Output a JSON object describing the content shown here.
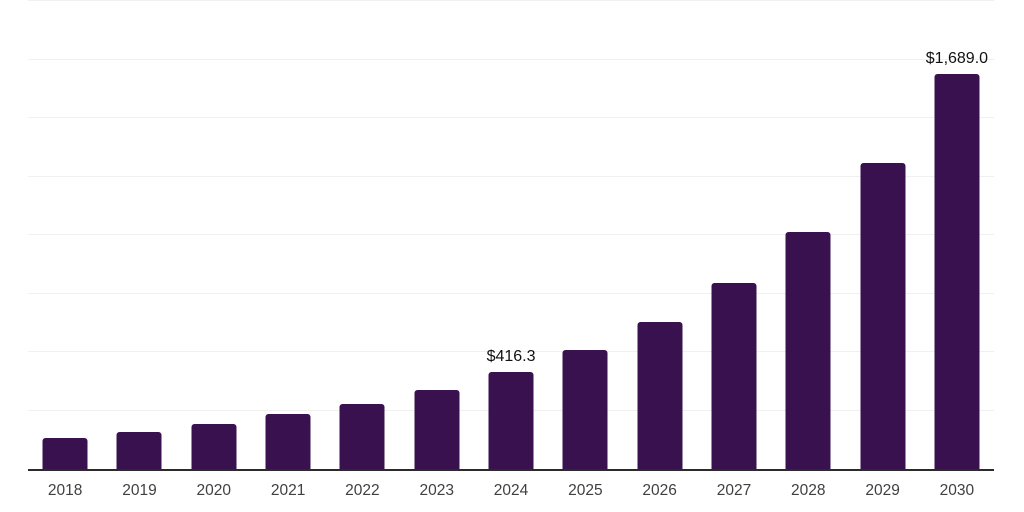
{
  "chart_data": {
    "type": "bar",
    "title": "",
    "xlabel": "",
    "ylabel": "",
    "categories": [
      "2018",
      "2019",
      "2020",
      "2021",
      "2022",
      "2023",
      "2024",
      "2025",
      "2026",
      "2027",
      "2028",
      "2029",
      "2030"
    ],
    "values": [
      133,
      158,
      194,
      233,
      278,
      338,
      416.3,
      508,
      629,
      793,
      1012,
      1306,
      1689.0
    ],
    "data_labels": [
      {
        "category": "2024",
        "text": "$416.3"
      },
      {
        "category": "2030",
        "text": "$1,689.0"
      }
    ],
    "ylim": [
      0,
      2000
    ],
    "gridline_step": 250,
    "grid": "horizontal",
    "legend": "none",
    "y_axis_tick_labels": "none",
    "colors": {
      "bar": "#3A114F",
      "gridline": "#f0f0f1",
      "axis": "#2b2b2b",
      "tick_label": "#404040",
      "data_label": "#111111",
      "background": "#ffffff"
    }
  }
}
